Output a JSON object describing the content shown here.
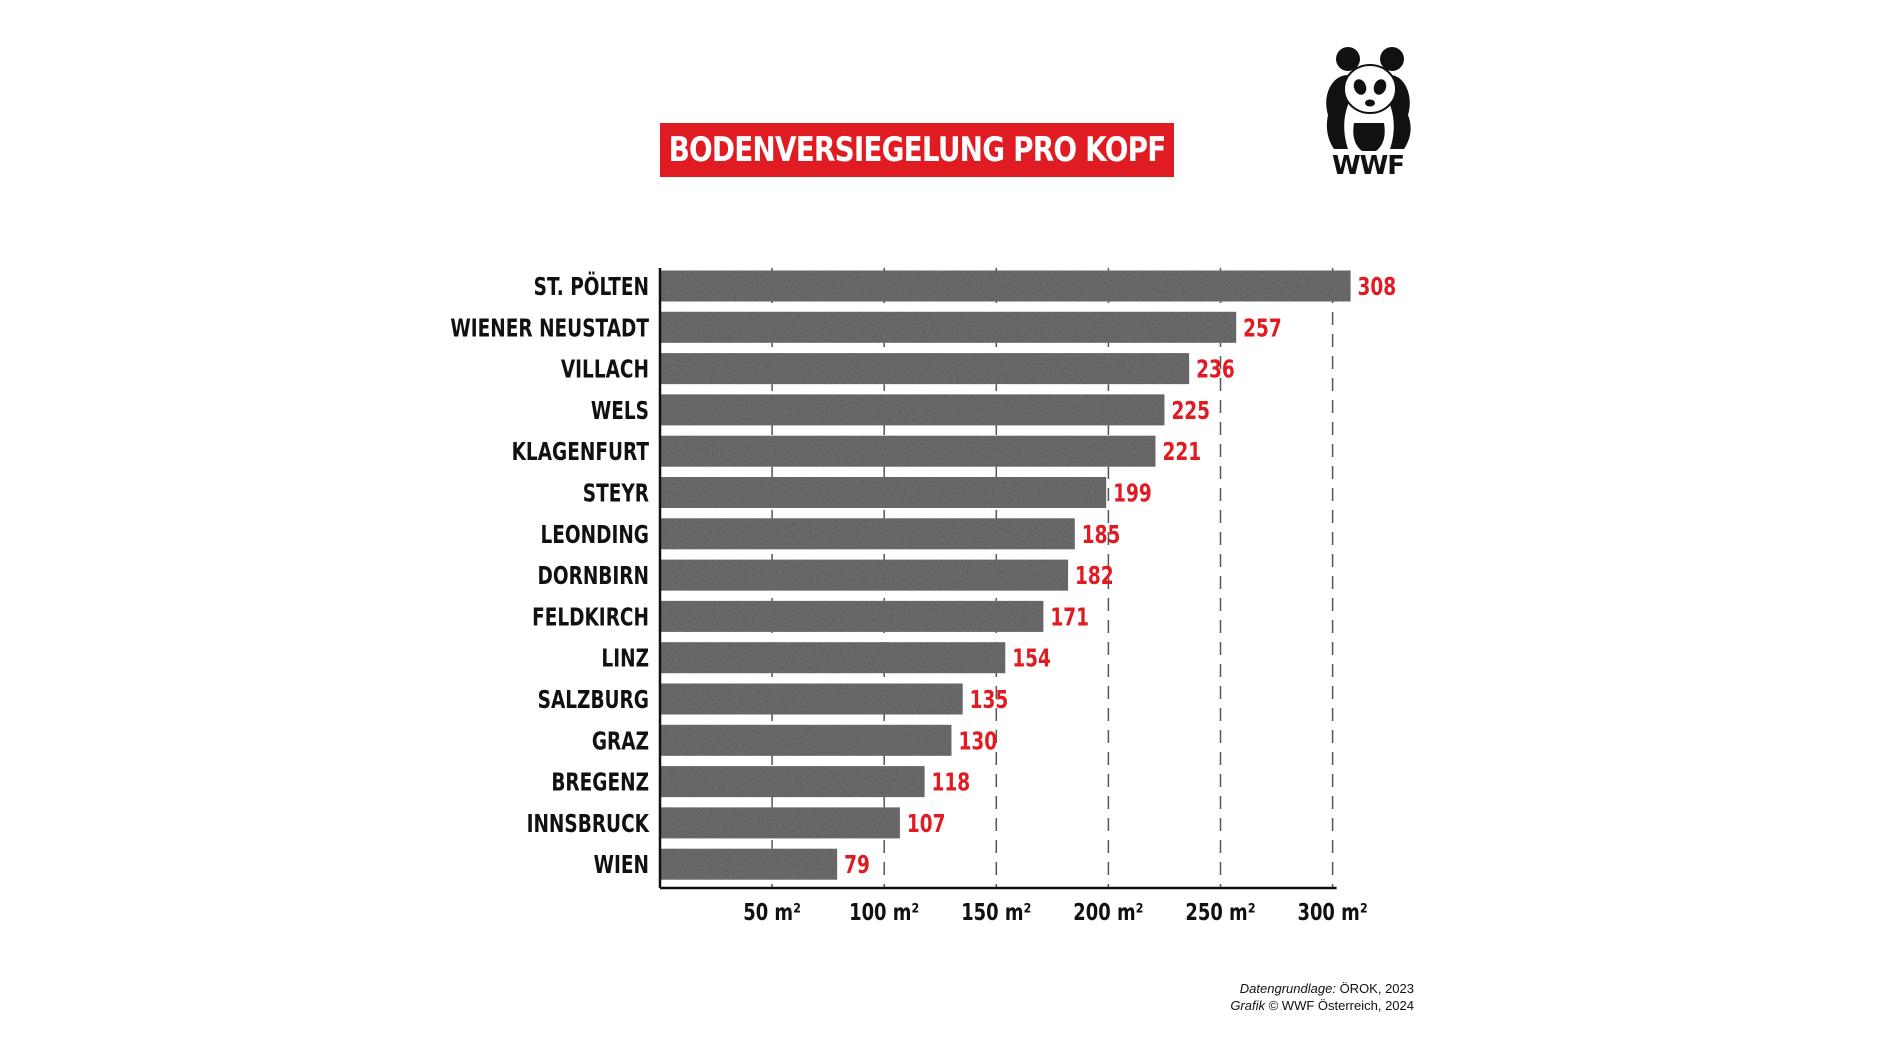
{
  "header": {
    "title": "BODENVERSIEGELUNG PRO KOPF",
    "logo_text": "WWF",
    "accent_color": "#e01b22"
  },
  "footer": {
    "source_label": "Datengrundlage:",
    "source_value": "ÖROK, 2023",
    "credit_label": "Grafik",
    "credit_value": "© WWF Österreich, 2024"
  },
  "chart_data": {
    "type": "bar",
    "orientation": "horizontal",
    "title": "BODENVERSIEGELUNG PRO KOPF",
    "xlabel": "",
    "ylabel": "",
    "xlim": [
      0,
      300
    ],
    "grid": "vertical dashed",
    "categories": [
      "ST. PÖLTEN",
      "WIENER NEUSTADT",
      "VILLACH",
      "WELS",
      "KLAGENFURT",
      "STEYR",
      "LEONDING",
      "DORNBIRN",
      "FELDKIRCH",
      "LINZ",
      "SALZBURG",
      "GRAZ",
      "BREGENZ",
      "INNSBRUCK",
      "WIEN"
    ],
    "values": [
      308,
      257,
      236,
      225,
      221,
      199,
      185,
      182,
      171,
      154,
      135,
      130,
      118,
      107,
      79
    ],
    "value_labels": [
      "308",
      "257",
      "236",
      "225",
      "221",
      "199",
      "185",
      "182",
      "171",
      "154",
      "135",
      "130",
      "118",
      "107",
      "79"
    ],
    "xticks": [
      50,
      100,
      150,
      200,
      250,
      300
    ],
    "xtick_labels": [
      "50 m²",
      "100 m²",
      "150 m²",
      "200 m²",
      "250 m²",
      "300 m²"
    ],
    "bar_color": "#6e6e6e",
    "label_color": "#e01b22"
  }
}
